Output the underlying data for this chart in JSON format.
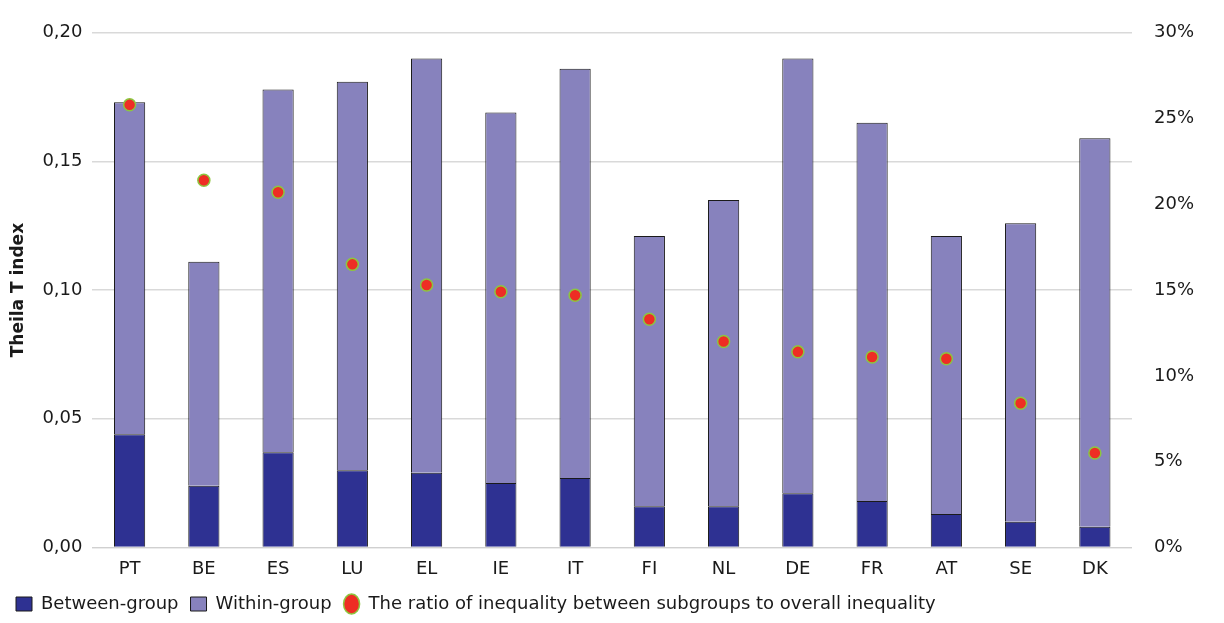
{
  "chart_data": {
    "type": "bar",
    "stacked": true,
    "ylabel": "Theila T index",
    "categories": [
      "PT",
      "BE",
      "ES",
      "LU",
      "EL",
      "IE",
      "IT",
      "FI",
      "NL",
      "DE",
      "FR",
      "AT",
      "SE",
      "DK"
    ],
    "series": [
      {
        "name": "Between-group",
        "color": "#2e3192",
        "values": [
          0.044,
          0.024,
          0.037,
          0.03,
          0.029,
          0.025,
          0.027,
          0.016,
          0.016,
          0.021,
          0.018,
          0.013,
          0.01,
          0.008
        ]
      },
      {
        "name": "Within-group",
        "color": "#8782bd",
        "values": [
          0.129,
          0.087,
          0.141,
          0.151,
          0.161,
          0.144,
          0.159,
          0.105,
          0.119,
          0.169,
          0.147,
          0.108,
          0.116,
          0.151
        ]
      },
      {
        "name": "The ratio of inequality between subgroups to overall inequality",
        "type": "scatter",
        "axis": "y2",
        "color": "#ee2d24",
        "marker": "circle",
        "values": [
          25.8,
          21.4,
          20.7,
          16.5,
          15.3,
          14.9,
          14.7,
          13.3,
          12.0,
          11.4,
          11.1,
          11.0,
          8.4,
          5.5
        ]
      }
    ],
    "ylim": [
      0,
      0.2
    ],
    "yticks": [
      {
        "value": 0,
        "label": "0,00"
      },
      {
        "value": 0.05,
        "label": "0,05"
      },
      {
        "value": 0.1,
        "label": "0,10"
      },
      {
        "value": 0.15,
        "label": "0,15"
      },
      {
        "value": 0.2,
        "label": "0,20"
      }
    ],
    "y2lim": [
      0,
      30
    ],
    "y2ticks": [
      {
        "value": 0,
        "label": "0%"
      },
      {
        "value": 5,
        "label": "5%"
      },
      {
        "value": 10,
        "label": "10%"
      },
      {
        "value": 15,
        "label": "15%"
      },
      {
        "value": 20,
        "label": "20%"
      },
      {
        "value": 25,
        "label": "25%"
      },
      {
        "value": 30,
        "label": "30%"
      }
    ],
    "grid": "y",
    "legend": "bottom"
  }
}
